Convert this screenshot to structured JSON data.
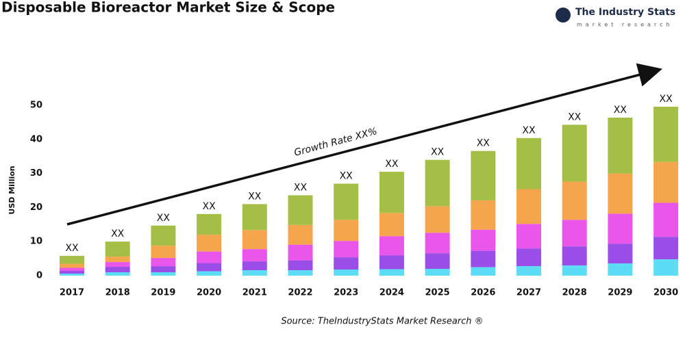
{
  "chart_data": {
    "type": "stacked_bar",
    "title": "Disposable Bioreactor Market Size & Scope",
    "brand": "The Industry Stats",
    "brand_tagline": "market research",
    "y_label": "USD Million",
    "annotation": "Growth Rate XX%",
    "source": "Source: TheIndustryStats Market Research ®",
    "categories": [
      "2017",
      "2018",
      "2019",
      "2020",
      "2021",
      "2022",
      "2023",
      "2024",
      "2025",
      "2026",
      "2027",
      "2028",
      "2029",
      "2030"
    ],
    "series": [
      {
        "color": "#5cdcf5",
        "values": [
          0.6,
          1.0,
          1.0,
          1.3,
          1.6,
          1.6,
          1.8,
          1.9,
          2.0,
          2.5,
          2.8,
          3.0,
          3.6,
          4.8
        ]
      },
      {
        "color": "#9b4de8",
        "values": [
          0.8,
          1.6,
          1.8,
          2.4,
          2.6,
          2.9,
          3.6,
          4.1,
          4.6,
          4.8,
          5.2,
          5.6,
          5.8,
          6.6
        ]
      },
      {
        "color": "#ea55ea",
        "values": [
          0.9,
          1.4,
          2.4,
          3.4,
          3.6,
          4.6,
          4.8,
          5.6,
          6.0,
          6.2,
          7.2,
          7.8,
          8.8,
          10.0
        ]
      },
      {
        "color": "#f5a64c",
        "values": [
          1.2,
          1.6,
          3.6,
          4.9,
          5.6,
          5.8,
          6.2,
          6.8,
          7.8,
          8.6,
          10.2,
          11.2,
          11.8,
          12.0
        ]
      },
      {
        "color": "#a4be46",
        "values": [
          2.3,
          4.4,
          5.9,
          6.1,
          7.6,
          8.7,
          10.6,
          12.1,
          13.6,
          14.5,
          15.0,
          16.7,
          16.4,
          16.2
        ]
      }
    ],
    "total_labels": [
      "XX",
      "XX",
      "XX",
      "XX",
      "XX",
      "XX",
      "XX",
      "XX",
      "XX",
      "XX",
      "XX",
      "XX",
      "XX",
      "XX"
    ],
    "ylim": [
      0,
      50
    ],
    "yticks": [
      0,
      10,
      20,
      30,
      40,
      50
    ]
  }
}
